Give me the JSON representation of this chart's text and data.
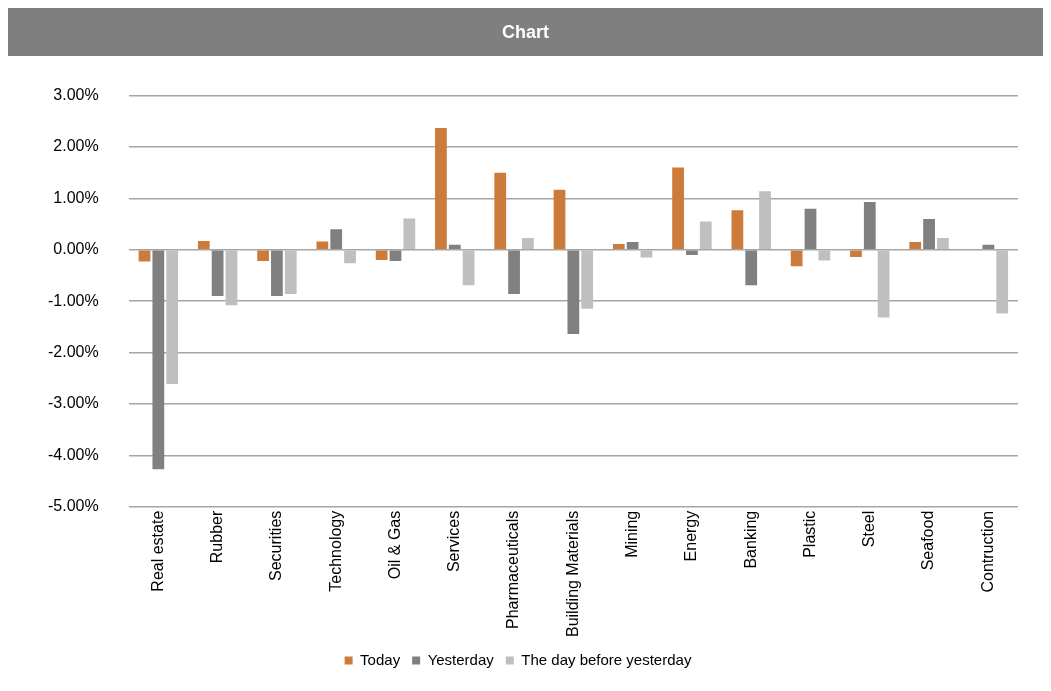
{
  "chart_data": {
    "type": "bar",
    "title": "Chart",
    "categories": [
      "Real estate",
      "Rubber",
      "Securities",
      "Technology",
      "Oil & Gas",
      "Services",
      "Pharmaceuticals",
      "Building Materials",
      "Mining",
      "Energy",
      "Banking",
      "Plastic",
      "Steel",
      "Seafood",
      "Contruction"
    ],
    "series": [
      {
        "name": "Today",
        "color": "#cd7b3a",
        "values": [
          -0.23,
          0.17,
          -0.22,
          0.16,
          -0.2,
          2.37,
          1.5,
          1.17,
          0.11,
          1.6,
          0.77,
          -0.32,
          -0.14,
          0.15,
          0
        ]
      },
      {
        "name": "Yesterday",
        "color": "#808080",
        "values": [
          -4.27,
          -0.9,
          -0.9,
          0.4,
          -0.22,
          0.1,
          -0.86,
          -1.64,
          0.15,
          -0.1,
          -0.69,
          0.8,
          0.93,
          0.6,
          0.1
        ]
      },
      {
        "name": "The day before yesterday",
        "color": "#bfbfbf",
        "values": [
          -2.61,
          -1.08,
          -0.86,
          -0.26,
          0.61,
          -0.69,
          0.23,
          -1.15,
          -0.15,
          0.55,
          1.14,
          -0.21,
          -1.32,
          0.23,
          -1.24
        ]
      }
    ],
    "ylim": [
      -5,
      3
    ],
    "yticks": [
      {
        "value": -5,
        "label": "-5.00%"
      },
      {
        "value": -4,
        "label": "-4.00%"
      },
      {
        "value": -3,
        "label": "-3.00%"
      },
      {
        "value": -2,
        "label": "-2.00%"
      },
      {
        "value": -1,
        "label": "-1.00%"
      },
      {
        "value": 0,
        "label": "0.00%"
      },
      {
        "value": 1,
        "label": "1.00%"
      },
      {
        "value": 2,
        "label": "2.00%"
      },
      {
        "value": 3,
        "label": "3.00%"
      }
    ],
    "grid": "y",
    "legend": "bottom"
  }
}
